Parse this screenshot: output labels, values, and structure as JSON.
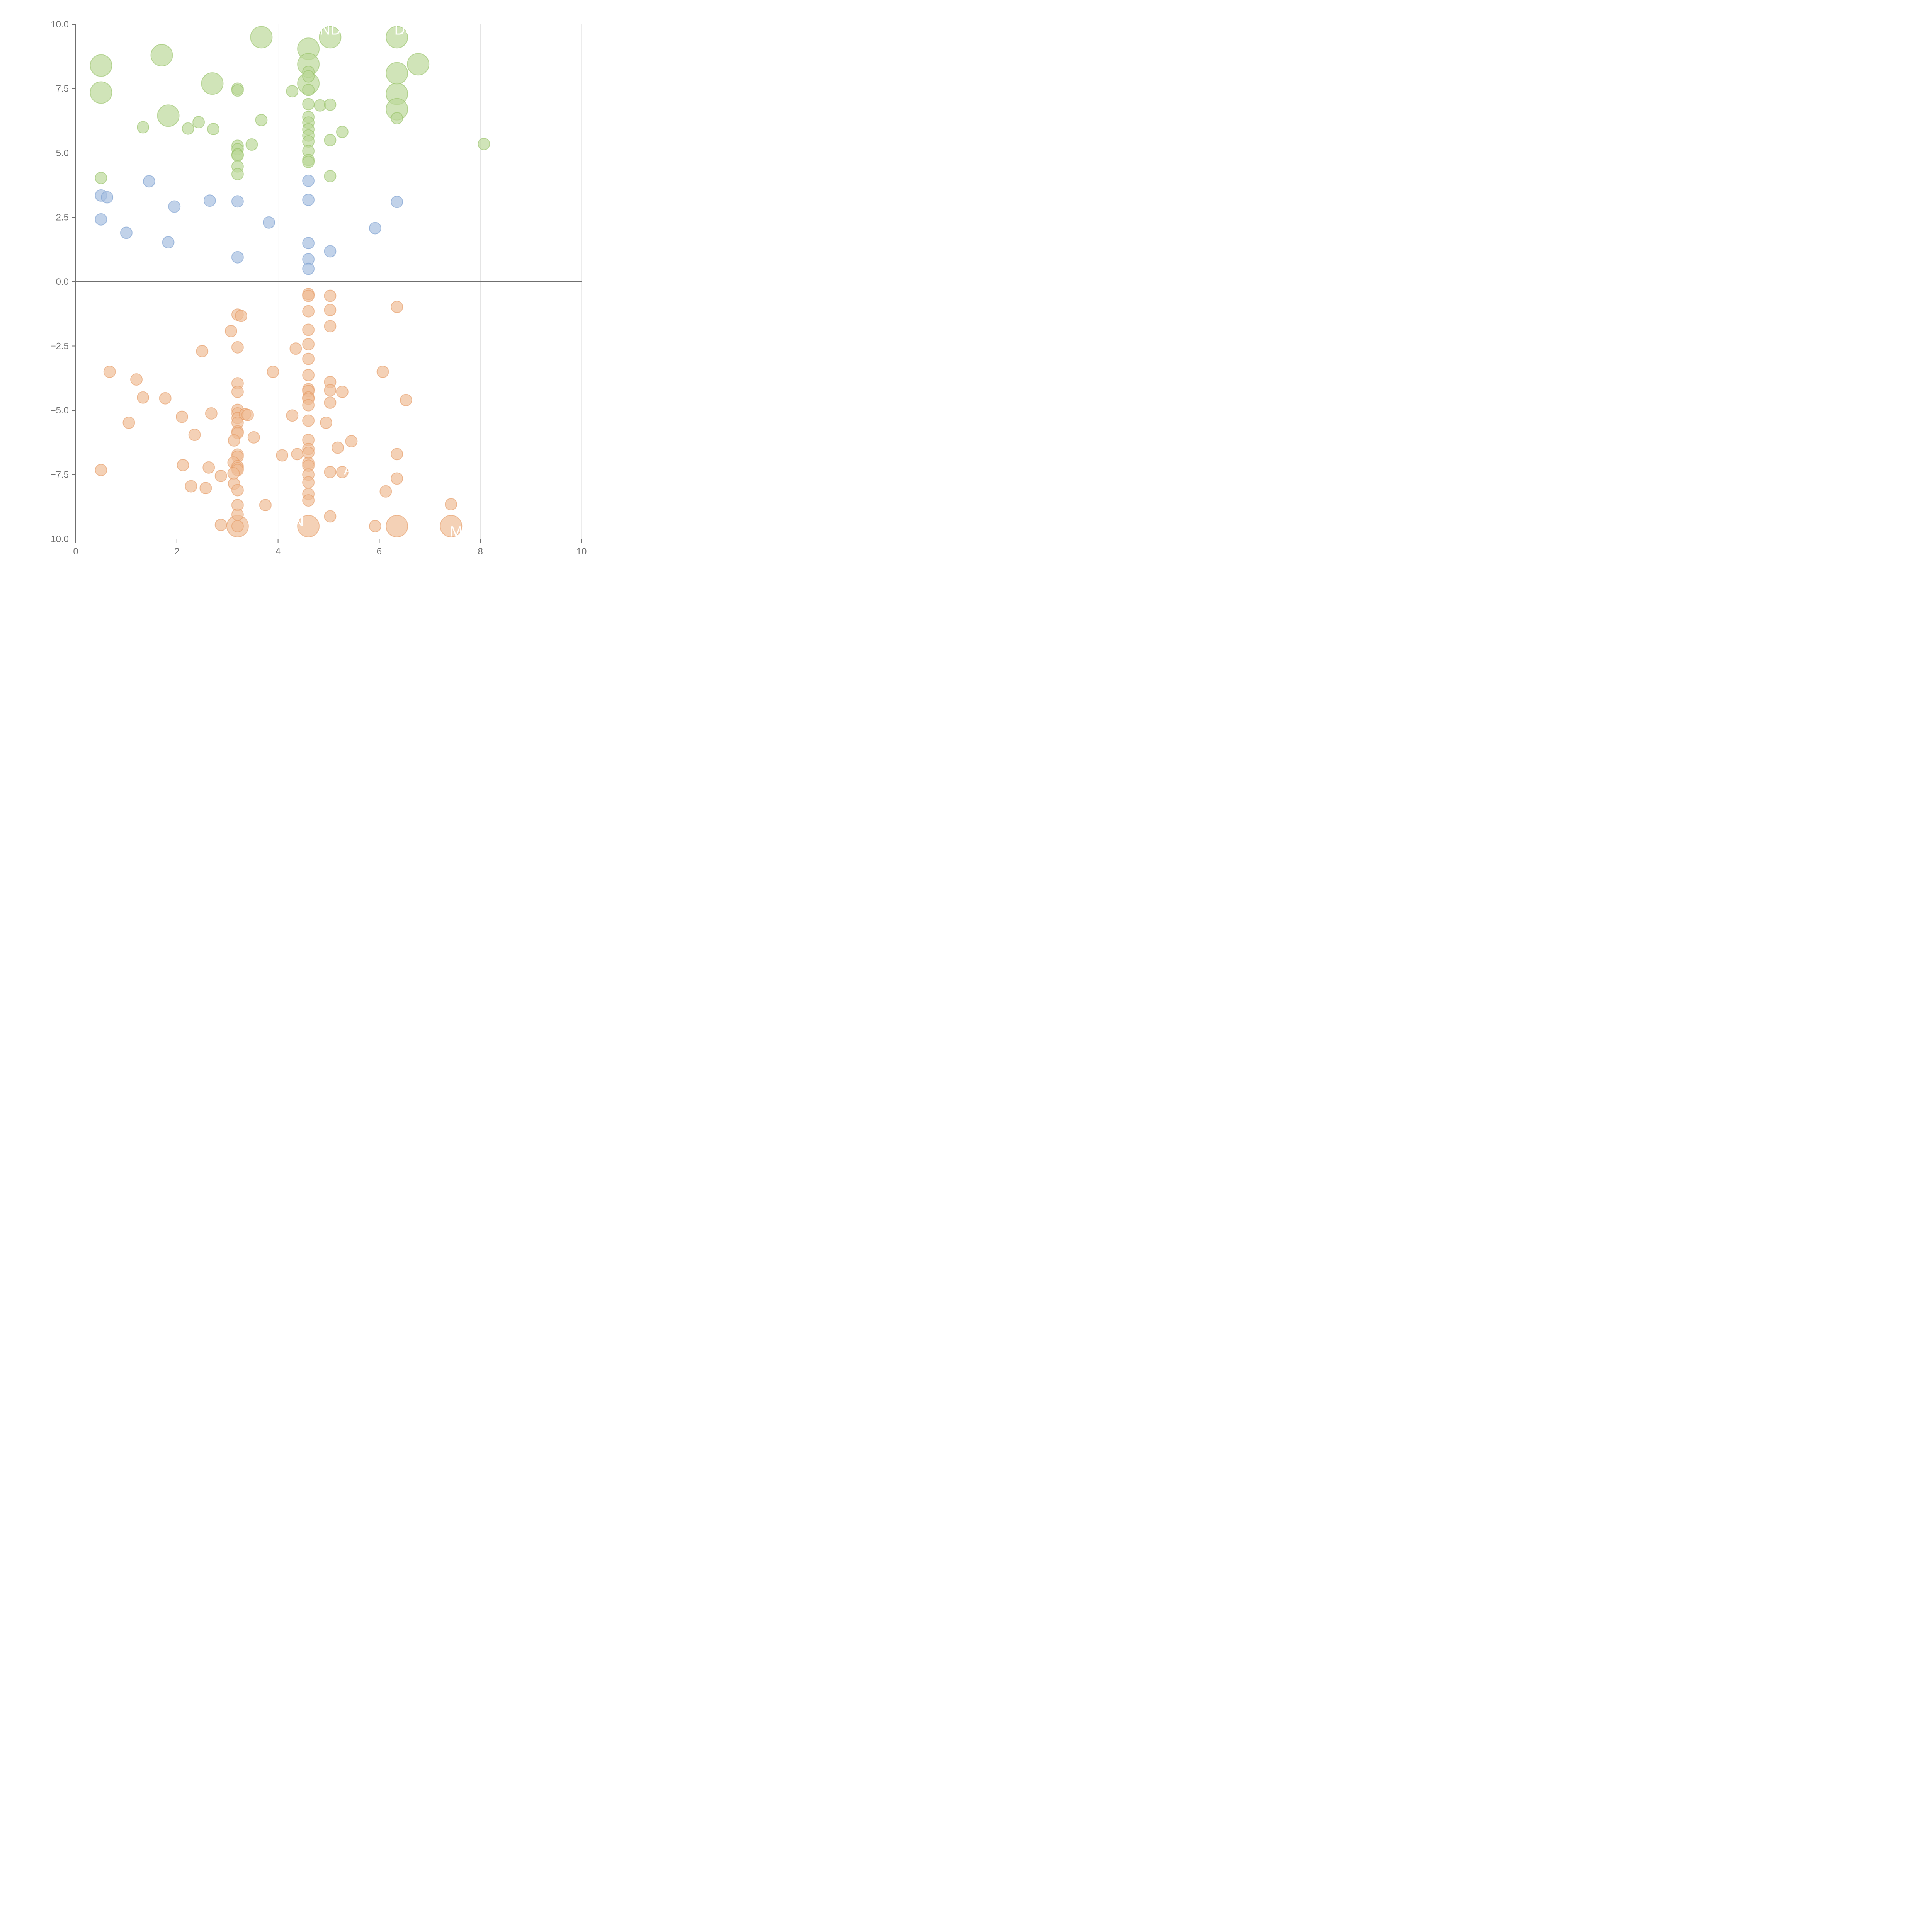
{
  "chart_data": {
    "type": "scatter",
    "title": "",
    "xlabel": "",
    "ylabel": "",
    "xlim": [
      0,
      10
    ],
    "ylim": [
      -10,
      10
    ],
    "x_ticks": [
      "0",
      "2",
      "4",
      "6",
      "8",
      "10"
    ],
    "y_ticks": [
      "10.0",
      "7.5",
      "5.0",
      "2.5",
      "0.0",
      "−2.5",
      "−5.0",
      "−7.5",
      "−10.0"
    ],
    "x_tick_values": [
      0,
      2,
      4,
      6,
      8,
      10
    ],
    "y_tick_values": [
      10,
      7.5,
      5,
      2.5,
      0,
      -2.5,
      -5,
      -7.5,
      -10
    ],
    "grid": "vertical",
    "reference_line_y": 0,
    "colors": {
      "green_fill": "#bcd89a",
      "green_stroke": "#8fbd5c",
      "blue_fill": "#a7bfdf",
      "blue_stroke": "#7198cc",
      "orange_fill": "#efbd97",
      "orange_stroke": "#e4965c"
    },
    "labels": [
      {
        "text": "ONDI",
        "x": 4.6,
        "y": 9.6
      },
      {
        "text": "DO",
        "x": 6.3,
        "y": 9.6
      },
      {
        "text": "N",
        "x": 4.3,
        "y": -9.5
      },
      {
        "text": "MO",
        "x": 7.4,
        "y": -9.9
      },
      {
        "text": "A",
        "x": 5.3,
        "y": -7.5
      }
    ],
    "series": [
      {
        "color": "green",
        "points": [
          [
            0.5,
            8.4,
            3
          ],
          [
            0.5,
            7.35,
            3
          ],
          [
            1.7,
            8.8,
            3
          ],
          [
            1.83,
            6.45,
            3
          ],
          [
            2.7,
            7.7,
            3
          ],
          [
            3.67,
            9.5,
            3
          ],
          [
            4.6,
            9.05,
            3
          ],
          [
            4.6,
            8.45,
            3
          ],
          [
            4.6,
            7.7,
            3
          ],
          [
            5.03,
            9.5,
            3
          ],
          [
            6.35,
            9.5,
            3
          ],
          [
            6.35,
            8.1,
            3
          ],
          [
            6.35,
            7.3,
            3
          ],
          [
            6.35,
            6.7,
            3
          ],
          [
            6.77,
            8.45,
            3
          ],
          [
            1.33,
            6.0,
            1
          ],
          [
            2.22,
            5.95,
            1
          ],
          [
            2.43,
            6.2,
            1
          ],
          [
            2.72,
            5.93,
            1
          ],
          [
            0.5,
            4.03,
            1
          ],
          [
            3.2,
            7.5,
            1
          ],
          [
            3.2,
            7.43,
            1
          ],
          [
            3.48,
            5.33,
            1
          ],
          [
            3.67,
            6.28,
            1
          ],
          [
            3.2,
            5.28,
            1
          ],
          [
            3.2,
            5.15,
            1
          ],
          [
            3.2,
            4.95,
            1
          ],
          [
            3.2,
            4.9,
            1
          ],
          [
            3.2,
            4.48,
            1
          ],
          [
            3.2,
            4.18,
            1
          ],
          [
            4.28,
            7.4,
            1
          ],
          [
            4.6,
            8.15,
            1
          ],
          [
            4.6,
            7.98,
            1
          ],
          [
            4.6,
            7.45,
            1
          ],
          [
            4.6,
            6.9,
            1
          ],
          [
            4.6,
            6.4,
            1
          ],
          [
            4.6,
            6.18,
            1
          ],
          [
            4.6,
            5.92,
            1
          ],
          [
            4.6,
            5.68,
            1
          ],
          [
            4.6,
            5.45,
            1
          ],
          [
            4.6,
            5.08,
            1
          ],
          [
            4.6,
            4.73,
            1
          ],
          [
            4.6,
            4.65,
            1
          ],
          [
            4.83,
            6.85,
            1
          ],
          [
            5.03,
            6.88,
            1
          ],
          [
            5.03,
            5.5,
            1
          ],
          [
            5.03,
            4.1,
            1
          ],
          [
            5.27,
            5.82,
            1
          ],
          [
            6.35,
            6.35,
            1
          ],
          [
            8.07,
            5.35,
            1
          ]
        ]
      },
      {
        "color": "blue",
        "points": [
          [
            0.5,
            3.35,
            1
          ],
          [
            0.62,
            3.28,
            1
          ],
          [
            0.5,
            2.42,
            1
          ],
          [
            1.0,
            1.9,
            1
          ],
          [
            1.45,
            3.9,
            1
          ],
          [
            1.83,
            1.53,
            1
          ],
          [
            1.95,
            2.92,
            1
          ],
          [
            2.65,
            3.15,
            1
          ],
          [
            3.2,
            3.12,
            1
          ],
          [
            3.2,
            0.95,
            1
          ],
          [
            3.82,
            2.3,
            1
          ],
          [
            4.6,
            3.92,
            1
          ],
          [
            4.6,
            3.18,
            1
          ],
          [
            4.6,
            1.5,
            1
          ],
          [
            4.6,
            0.87,
            1
          ],
          [
            4.6,
            0.5,
            1
          ],
          [
            5.03,
            1.18,
            1
          ],
          [
            5.92,
            2.08,
            1
          ],
          [
            6.35,
            3.1,
            1
          ]
        ]
      },
      {
        "color": "orange",
        "points": [
          [
            3.2,
            -9.5,
            3
          ],
          [
            4.6,
            -9.5,
            3
          ],
          [
            6.35,
            -9.5,
            3
          ],
          [
            7.42,
            -9.5,
            3
          ],
          [
            0.67,
            -3.5,
            1
          ],
          [
            1.2,
            -3.8,
            1
          ],
          [
            1.33,
            -4.5,
            1
          ],
          [
            1.77,
            -4.53,
            1
          ],
          [
            1.05,
            -5.48,
            1
          ],
          [
            0.5,
            -7.32,
            1
          ],
          [
            2.1,
            -5.25,
            1
          ],
          [
            2.12,
            -7.13,
            1
          ],
          [
            2.35,
            -5.95,
            1
          ],
          [
            2.28,
            -7.95,
            1
          ],
          [
            2.5,
            -2.7,
            1
          ],
          [
            2.57,
            -8.02,
            1
          ],
          [
            2.63,
            -7.22,
            1
          ],
          [
            2.68,
            -5.12,
            1
          ],
          [
            2.87,
            -7.55,
            1
          ],
          [
            2.87,
            -9.45,
            1
          ],
          [
            3.07,
            -1.92,
            1
          ],
          [
            3.2,
            -1.28,
            1
          ],
          [
            3.27,
            -1.33,
            1
          ],
          [
            3.2,
            -2.55,
            1
          ],
          [
            3.2,
            -3.95,
            1
          ],
          [
            3.2,
            -4.28,
            1
          ],
          [
            3.2,
            -4.98,
            1
          ],
          [
            3.2,
            -5.12,
            1
          ],
          [
            3.2,
            -5.3,
            1
          ],
          [
            3.2,
            -5.48,
            1
          ],
          [
            3.2,
            -5.82,
            1
          ],
          [
            3.2,
            -5.88,
            1
          ],
          [
            3.13,
            -6.17,
            1
          ],
          [
            3.2,
            -6.72,
            1
          ],
          [
            3.2,
            -6.8,
            1
          ],
          [
            3.12,
            -7.03,
            1
          ],
          [
            3.2,
            -7.17,
            1
          ],
          [
            3.2,
            -7.25,
            1
          ],
          [
            3.2,
            -7.32,
            1
          ],
          [
            3.12,
            -7.45,
            1
          ],
          [
            3.13,
            -7.85,
            1
          ],
          [
            3.2,
            -8.1,
            1
          ],
          [
            3.2,
            -8.68,
            1
          ],
          [
            3.2,
            -9.05,
            1
          ],
          [
            3.2,
            -9.5,
            1
          ],
          [
            3.35,
            -5.15,
            1
          ],
          [
            3.4,
            -5.18,
            1
          ],
          [
            3.52,
            -6.05,
            1
          ],
          [
            3.75,
            -8.68,
            1
          ],
          [
            3.9,
            -3.5,
            1
          ],
          [
            4.08,
            -6.75,
            1
          ],
          [
            4.28,
            -5.2,
            1
          ],
          [
            4.35,
            -2.6,
            1
          ],
          [
            4.38,
            -6.7,
            1
          ],
          [
            4.6,
            -0.48,
            1
          ],
          [
            4.6,
            -0.55,
            1
          ],
          [
            4.6,
            -1.15,
            1
          ],
          [
            4.6,
            -1.87,
            1
          ],
          [
            4.6,
            -2.43,
            1
          ],
          [
            4.6,
            -3.0,
            1
          ],
          [
            4.6,
            -3.63,
            1
          ],
          [
            4.6,
            -4.18,
            1
          ],
          [
            4.6,
            -4.25,
            1
          ],
          [
            4.6,
            -4.5,
            1
          ],
          [
            4.6,
            -4.55,
            1
          ],
          [
            4.6,
            -4.8,
            1
          ],
          [
            4.6,
            -5.4,
            1
          ],
          [
            4.6,
            -6.15,
            1
          ],
          [
            4.6,
            -6.5,
            1
          ],
          [
            4.6,
            -6.65,
            1
          ],
          [
            4.6,
            -7.05,
            1
          ],
          [
            4.6,
            -7.15,
            1
          ],
          [
            4.6,
            -7.5,
            1
          ],
          [
            4.6,
            -7.8,
            1
          ],
          [
            4.6,
            -8.25,
            1
          ],
          [
            4.6,
            -8.5,
            1
          ],
          [
            4.95,
            -5.48,
            1
          ],
          [
            5.03,
            -0.55,
            1
          ],
          [
            5.03,
            -1.1,
            1
          ],
          [
            5.03,
            -1.73,
            1
          ],
          [
            5.03,
            -3.9,
            1
          ],
          [
            5.03,
            -4.22,
            1
          ],
          [
            5.03,
            -4.7,
            1
          ],
          [
            5.03,
            -7.4,
            1
          ],
          [
            5.03,
            -9.12,
            1
          ],
          [
            5.18,
            -6.45,
            1
          ],
          [
            5.27,
            -4.28,
            1
          ],
          [
            5.27,
            -7.4,
            1
          ],
          [
            5.45,
            -6.2,
            1
          ],
          [
            5.92,
            -9.5,
            1
          ],
          [
            6.07,
            -3.5,
            1
          ],
          [
            6.13,
            -8.15,
            1
          ],
          [
            6.35,
            -0.98,
            1
          ],
          [
            6.35,
            -6.7,
            1
          ],
          [
            6.35,
            -7.65,
            1
          ],
          [
            6.53,
            -4.6,
            1
          ],
          [
            7.42,
            -8.65,
            1
          ]
        ]
      }
    ]
  }
}
